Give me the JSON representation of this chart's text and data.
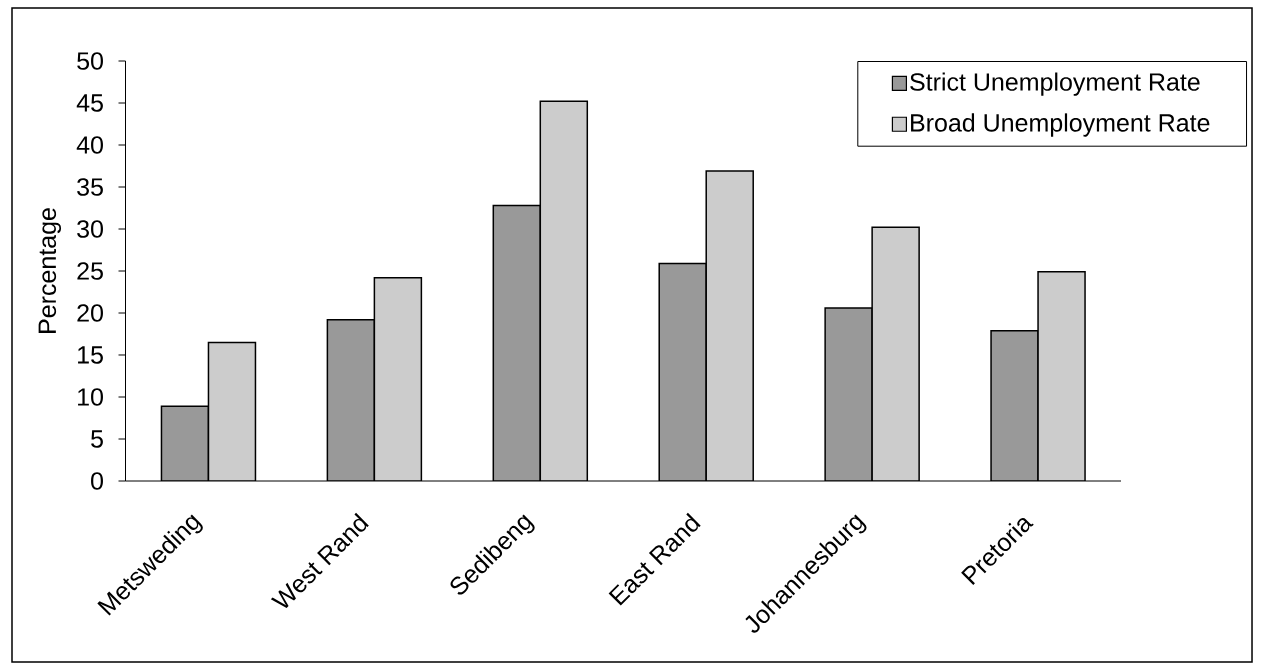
{
  "chart_data": {
    "type": "bar",
    "ylabel": "Percentage",
    "categories": [
      "Metsweding",
      "West Rand",
      "Sedibeng",
      "East Rand",
      "Johannesburg",
      "Pretoria"
    ],
    "series": [
      {
        "name": "Strict Unemployment Rate",
        "color": "#999999",
        "values": [
          8.9,
          19.2,
          32.8,
          25.9,
          20.6,
          17.9
        ]
      },
      {
        "name": "Broad Unemployment Rate",
        "color": "#cccccc",
        "values": [
          16.5,
          24.2,
          45.2,
          36.9,
          30.2,
          24.9
        ]
      }
    ],
    "ylim": [
      0,
      50
    ],
    "yticks": [
      0,
      5,
      10,
      15,
      20,
      25,
      30,
      35,
      40,
      45,
      50
    ],
    "legend": "top right"
  }
}
